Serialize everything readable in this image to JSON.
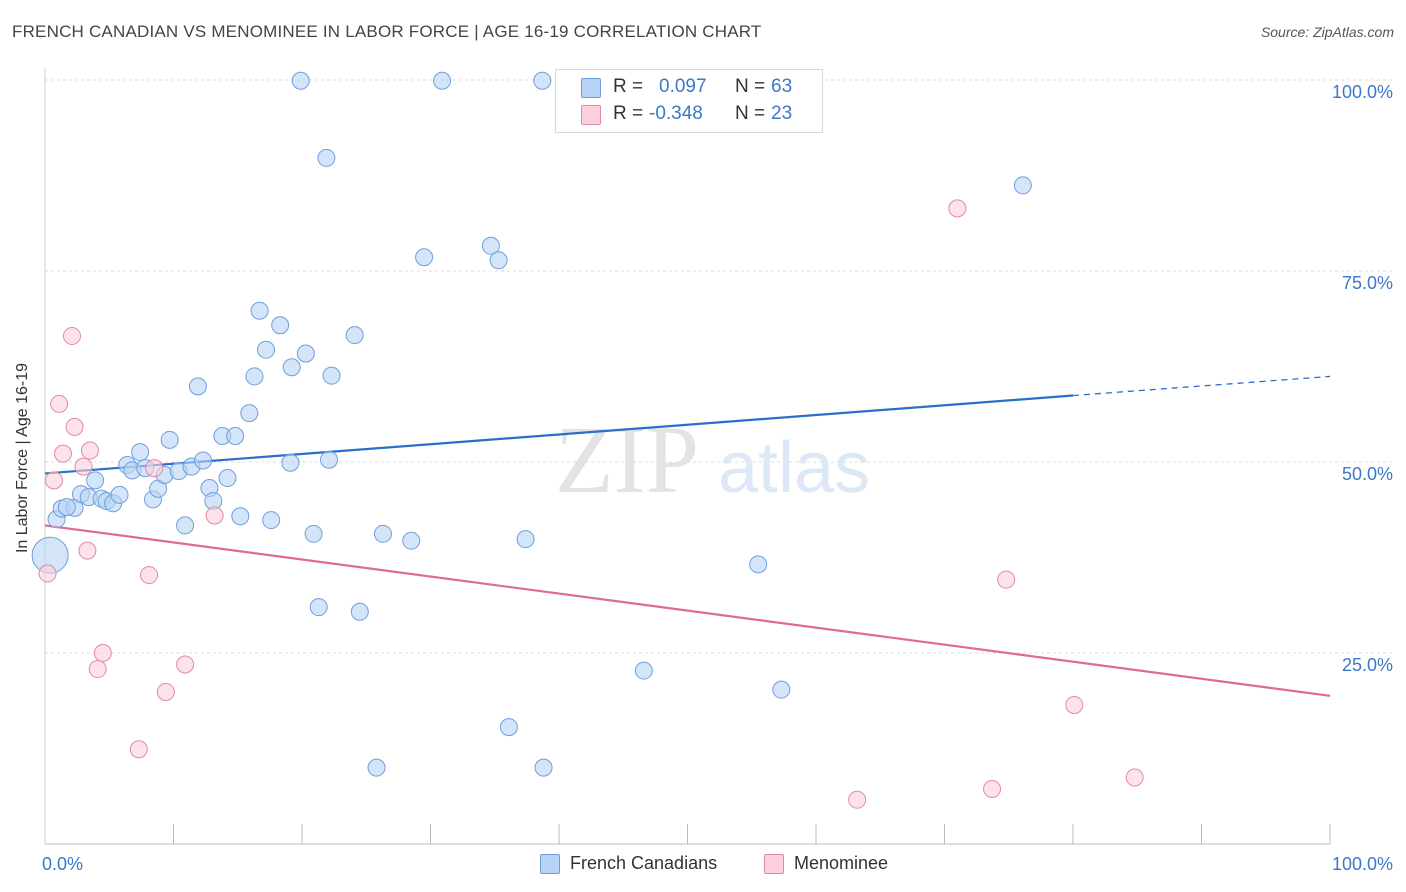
{
  "title": "FRENCH CANADIAN VS MENOMINEE IN LABOR FORCE | AGE 16-19 CORRELATION CHART",
  "source": "Source: ZipAtlas.com",
  "watermark": {
    "zip": "ZIP",
    "atlas": "atlas"
  },
  "legend": {
    "rows": [
      {
        "r_label": "R =",
        "r_value": "0.097",
        "n_label": "N =",
        "n_value": "63",
        "color": "#b8d3f5",
        "border": "#6f9fdb"
      },
      {
        "r_label": "R =",
        "r_value": "-0.348",
        "n_label": "N =",
        "n_value": "23",
        "color": "#fbcfdc",
        "border": "#e08aa6"
      }
    ]
  },
  "bottom_legend": [
    {
      "label": "French Canadians",
      "color": "#b8d3f5",
      "border": "#6f9fdb"
    },
    {
      "label": "Menominee",
      "color": "#fbcfdc",
      "border": "#e08aa6"
    }
  ],
  "chart_data": {
    "type": "scatter",
    "title": "FRENCH CANADIAN VS MENOMINEE IN LABOR FORCE | AGE 16-19 CORRELATION CHART",
    "xlabel": "",
    "ylabel": "In Labor Force | Age 16-19",
    "xlim": [
      0,
      100
    ],
    "ylim": [
      0,
      100
    ],
    "x_tick_labels": [
      "0.0%",
      "100.0%"
    ],
    "y_tick_labels": [
      "25.0%",
      "50.0%",
      "75.0%",
      "100.0%"
    ],
    "y_ticks": [
      25,
      50,
      75,
      100
    ],
    "grid": true,
    "series": [
      {
        "name": "French Canadians",
        "color": "#6f9fdb",
        "fill": "#b8d3f5",
        "trend_color": "#2a6fc9",
        "trend": {
          "x": [
            0,
            80
          ],
          "y": [
            48.5,
            58.7
          ]
        },
        "trend_dashed": {
          "x": [
            80,
            100
          ],
          "y": [
            58.7,
            61.2
          ]
        },
        "points": [
          {
            "x": 0.4,
            "y": 37.8,
            "big": true
          },
          {
            "x": 0.9,
            "y": 42.5
          },
          {
            "x": 1.3,
            "y": 43.9
          },
          {
            "x": 2.3,
            "y": 44.0
          },
          {
            "x": 1.7,
            "y": 44.1
          },
          {
            "x": 2.8,
            "y": 45.8
          },
          {
            "x": 3.4,
            "y": 45.4
          },
          {
            "x": 3.9,
            "y": 47.6
          },
          {
            "x": 4.4,
            "y": 45.2
          },
          {
            "x": 4.8,
            "y": 44.9
          },
          {
            "x": 5.3,
            "y": 44.6
          },
          {
            "x": 5.8,
            "y": 45.7
          },
          {
            "x": 6.4,
            "y": 49.6
          },
          {
            "x": 6.8,
            "y": 48.9
          },
          {
            "x": 7.4,
            "y": 51.3
          },
          {
            "x": 7.8,
            "y": 49.2
          },
          {
            "x": 8.4,
            "y": 45.1
          },
          {
            "x": 8.8,
            "y": 46.5
          },
          {
            "x": 9.3,
            "y": 48.3
          },
          {
            "x": 9.7,
            "y": 52.9
          },
          {
            "x": 10.4,
            "y": 48.8
          },
          {
            "x": 10.9,
            "y": 41.7
          },
          {
            "x": 11.4,
            "y": 49.4
          },
          {
            "x": 11.9,
            "y": 59.9
          },
          {
            "x": 12.3,
            "y": 50.2
          },
          {
            "x": 12.8,
            "y": 46.6
          },
          {
            "x": 13.1,
            "y": 44.9
          },
          {
            "x": 13.8,
            "y": 53.4
          },
          {
            "x": 14.2,
            "y": 47.9
          },
          {
            "x": 14.8,
            "y": 53.4
          },
          {
            "x": 15.2,
            "y": 42.9
          },
          {
            "x": 15.9,
            "y": 56.4
          },
          {
            "x": 16.3,
            "y": 61.2
          },
          {
            "x": 16.7,
            "y": 69.8
          },
          {
            "x": 17.2,
            "y": 64.7
          },
          {
            "x": 17.6,
            "y": 42.4
          },
          {
            "x": 18.3,
            "y": 67.9
          },
          {
            "x": 19.2,
            "y": 62.4
          },
          {
            "x": 19.1,
            "y": 49.9
          },
          {
            "x": 20.3,
            "y": 64.2
          },
          {
            "x": 20.9,
            "y": 40.6
          },
          {
            "x": 21.3,
            "y": 31.0
          },
          {
            "x": 22.3,
            "y": 61.3
          },
          {
            "x": 22.1,
            "y": 50.3
          },
          {
            "x": 24.1,
            "y": 66.6
          },
          {
            "x": 24.5,
            "y": 30.4
          },
          {
            "x": 25.8,
            "y": 10.0
          },
          {
            "x": 26.3,
            "y": 40.6
          },
          {
            "x": 28.5,
            "y": 39.7
          },
          {
            "x": 29.5,
            "y": 76.8
          },
          {
            "x": 34.7,
            "y": 78.3
          },
          {
            "x": 35.3,
            "y": 76.4
          },
          {
            "x": 36.1,
            "y": 15.3
          },
          {
            "x": 37.4,
            "y": 39.9
          },
          {
            "x": 38.8,
            "y": 10.0
          },
          {
            "x": 46.6,
            "y": 22.7
          },
          {
            "x": 55.5,
            "y": 36.6
          },
          {
            "x": 57.3,
            "y": 20.2
          },
          {
            "x": 76.1,
            "y": 86.2
          },
          {
            "x": 19.9,
            "y": 99.9
          },
          {
            "x": 30.9,
            "y": 99.9
          },
          {
            "x": 38.7,
            "y": 99.9
          },
          {
            "x": 21.9,
            "y": 89.8
          }
        ]
      },
      {
        "name": "Menominee",
        "color": "#e08aa6",
        "fill": "#fbcfdc",
        "trend_color": "#e06a93",
        "trend": {
          "x": [
            0,
            100
          ],
          "y": [
            41.7,
            19.4
          ]
        },
        "points": [
          {
            "x": 0.2,
            "y": 35.4
          },
          {
            "x": 0.7,
            "y": 47.6
          },
          {
            "x": 1.1,
            "y": 57.6
          },
          {
            "x": 1.4,
            "y": 51.1
          },
          {
            "x": 2.1,
            "y": 66.5
          },
          {
            "x": 2.3,
            "y": 54.6
          },
          {
            "x": 3.0,
            "y": 49.4
          },
          {
            "x": 3.3,
            "y": 38.4
          },
          {
            "x": 3.5,
            "y": 51.5
          },
          {
            "x": 4.1,
            "y": 22.9
          },
          {
            "x": 4.5,
            "y": 25.0
          },
          {
            "x": 7.3,
            "y": 12.4
          },
          {
            "x": 8.1,
            "y": 35.2
          },
          {
            "x": 8.5,
            "y": 49.2
          },
          {
            "x": 9.4,
            "y": 19.9
          },
          {
            "x": 10.9,
            "y": 23.5
          },
          {
            "x": 13.2,
            "y": 43.0
          },
          {
            "x": 63.2,
            "y": 5.8
          },
          {
            "x": 71.0,
            "y": 83.2
          },
          {
            "x": 73.7,
            "y": 7.2
          },
          {
            "x": 74.8,
            "y": 34.6
          },
          {
            "x": 80.1,
            "y": 18.2
          },
          {
            "x": 84.8,
            "y": 8.7
          }
        ]
      }
    ]
  }
}
